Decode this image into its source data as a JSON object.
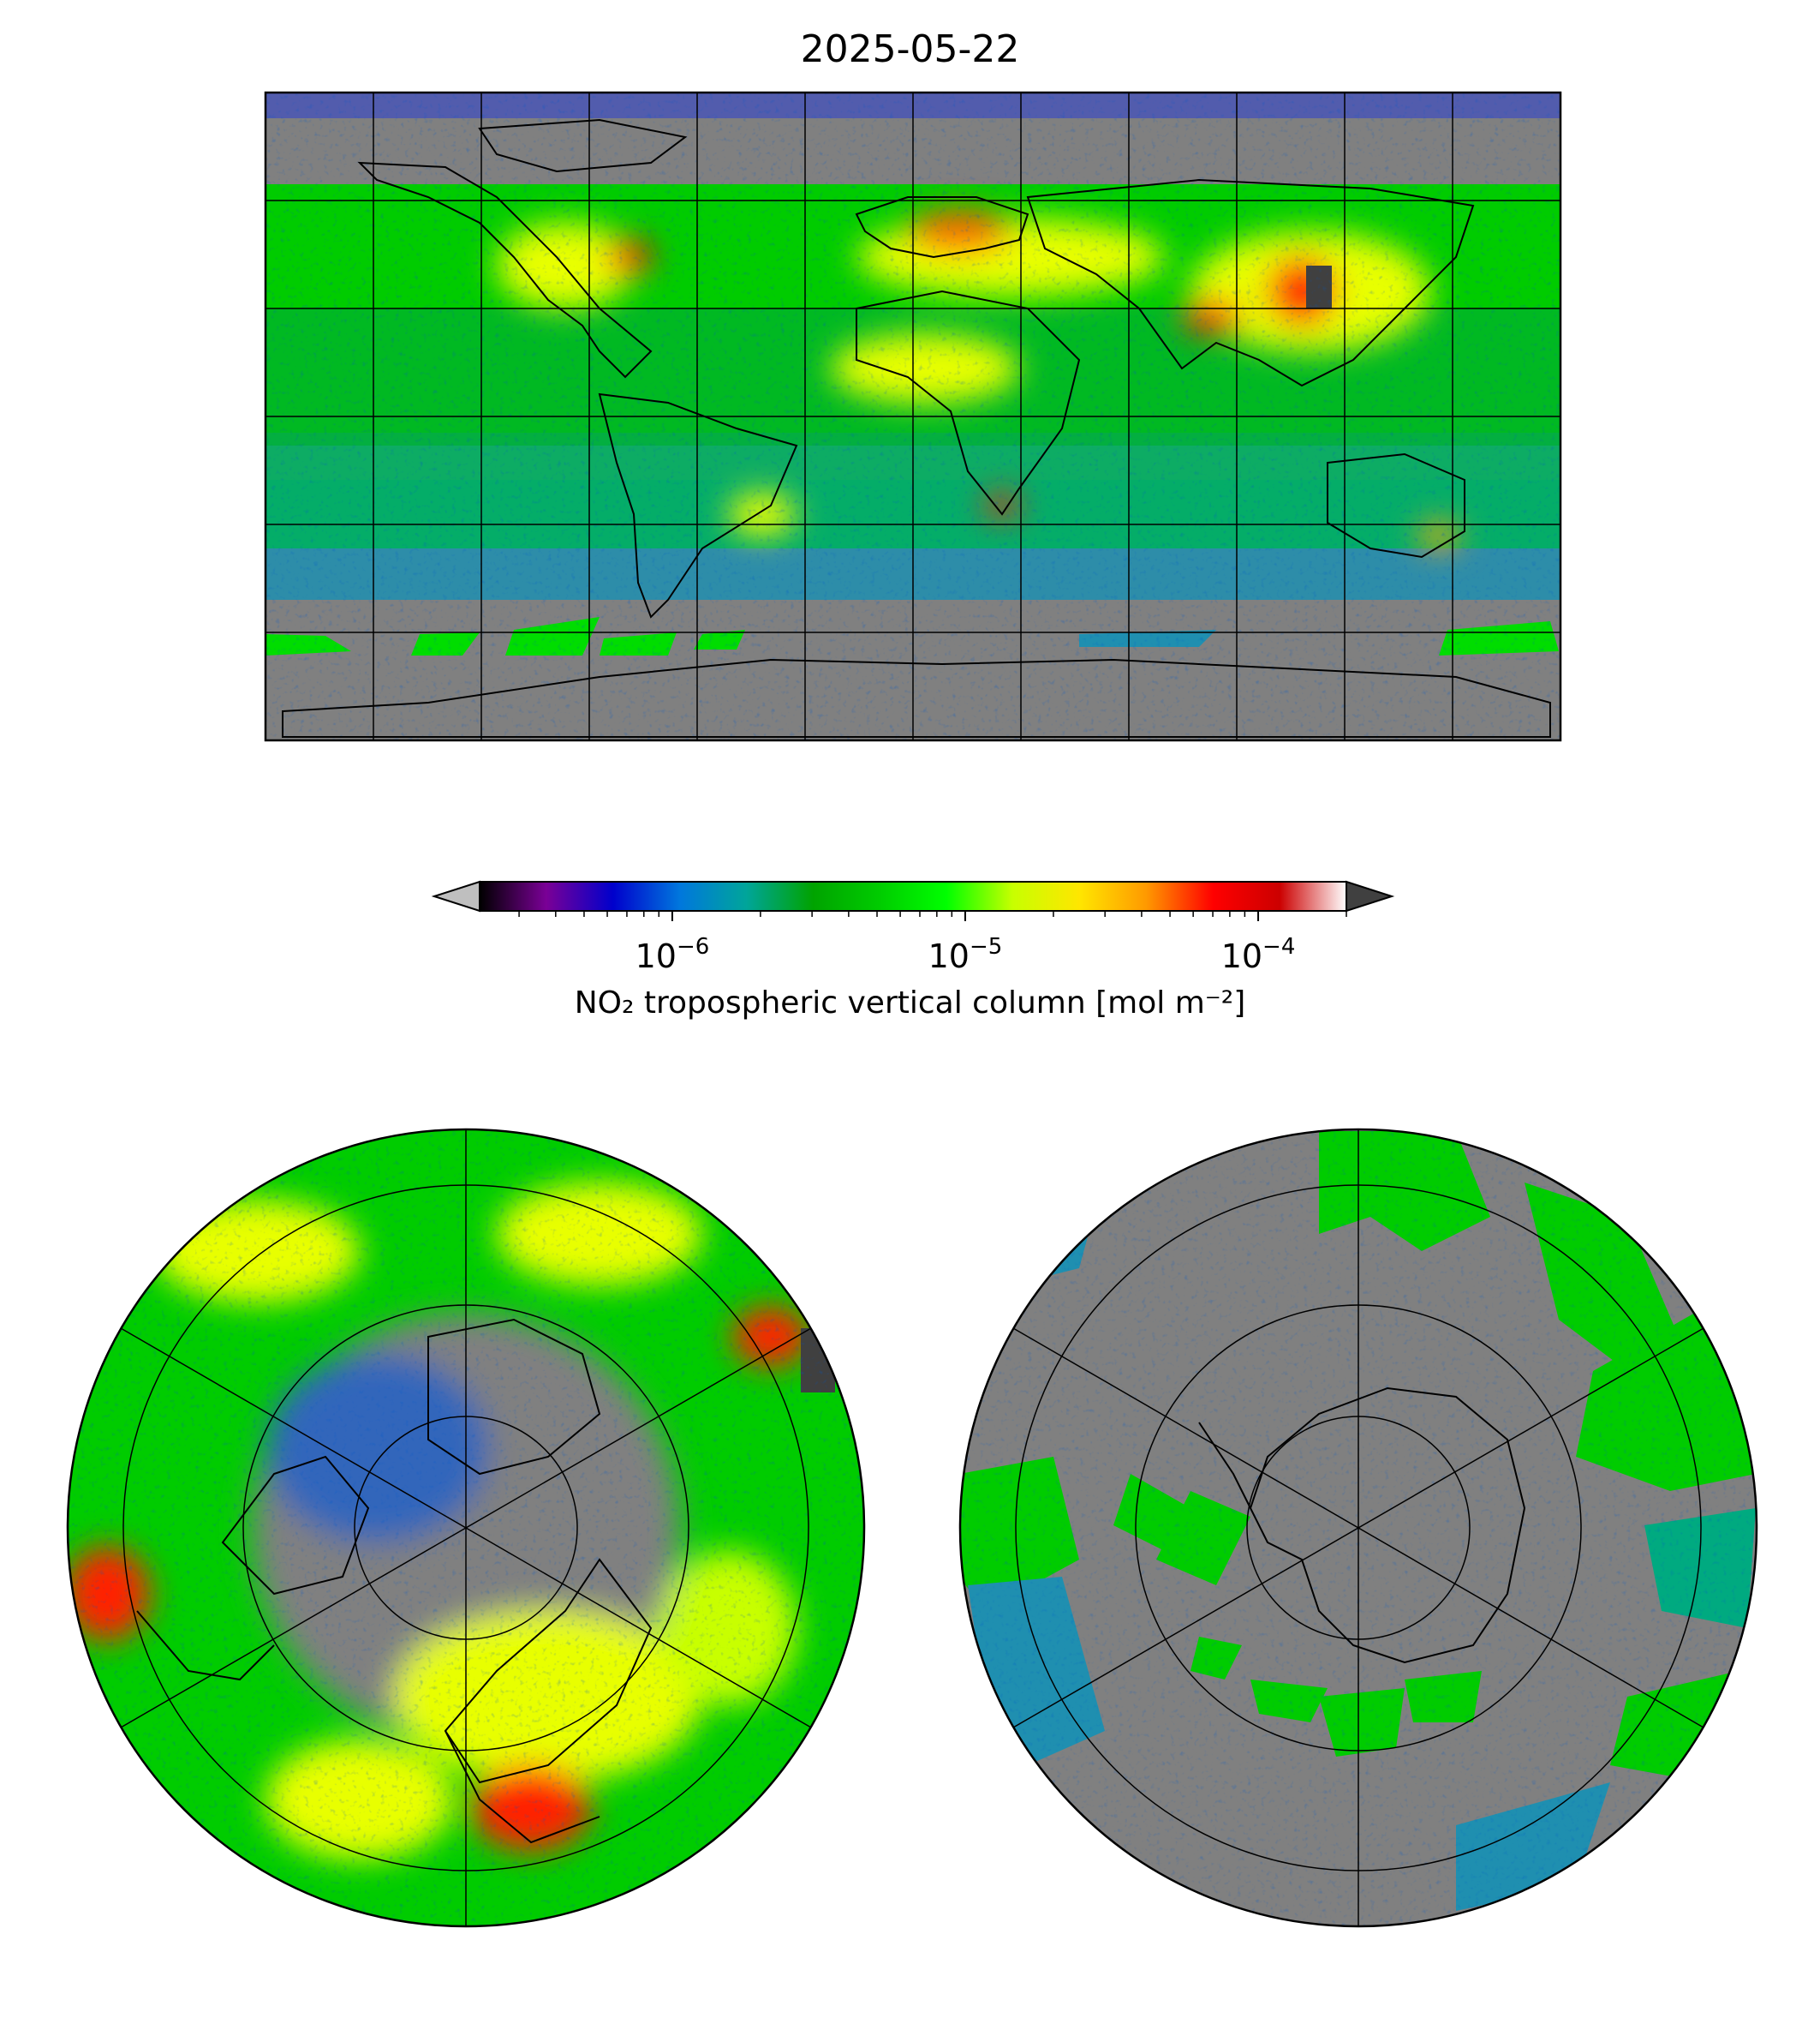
{
  "title": "2025-05-22",
  "colorbar": {
    "label": "NO₂ tropospheric vertical column [mol m⁻²]",
    "scale": "log",
    "range": [
      2.2e-07,
      0.0002
    ],
    "major_ticks": [
      {
        "base": "10",
        "exp": "−6",
        "value": 1e-06
      },
      {
        "base": "10",
        "exp": "−5",
        "value": 1e-05
      },
      {
        "base": "10",
        "exp": "−4",
        "value": 0.0001
      }
    ],
    "colormap": [
      "#000000",
      "#7a0096",
      "#0000cc",
      "#0077dd",
      "#00a59a",
      "#00a300",
      "#00cc00",
      "#00ff00",
      "#c8ff00",
      "#ffe600",
      "#ff9900",
      "#ff0000",
      "#cc0000",
      "#ffffff"
    ],
    "under_color": "#bfbfbf",
    "over_color": "#404040",
    "extend": "both"
  },
  "maps": {
    "global": {
      "projection": "PlateCarree",
      "background": "#808080",
      "gridlines": true
    },
    "north_polar": {
      "projection": "NorthPolarStereo",
      "background": "#808080",
      "gridlines": true
    },
    "south_polar": {
      "projection": "SouthPolarStereo",
      "background": "#808080",
      "gridlines": true
    }
  }
}
